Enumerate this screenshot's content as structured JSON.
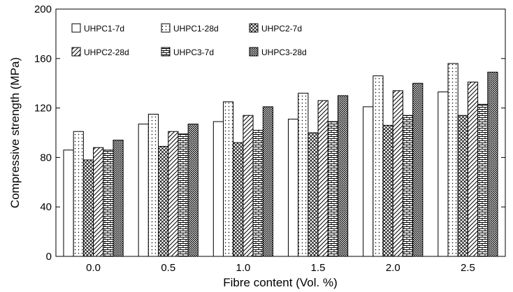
{
  "chart_data": {
    "type": "bar",
    "xlabel": "Fibre content (Vol. %)",
    "ylabel": "Compressive strength (MPa)",
    "categories": [
      "0.0",
      "0.5",
      "1.0",
      "1.5",
      "2.0",
      "2.5"
    ],
    "ylim": [
      0,
      200
    ],
    "yticks": [
      "0",
      "40",
      "80",
      "120",
      "160",
      "200"
    ],
    "legend_position": "top-left, inside plot, 2 rows x 3 columns",
    "series": [
      {
        "name": "UHPC1-7d",
        "pattern": "blank",
        "values": [
          86,
          107,
          109,
          111,
          121,
          133
        ]
      },
      {
        "name": "UHPC1-28d",
        "pattern": "dots",
        "values": [
          101,
          115,
          125,
          132,
          146,
          156
        ]
      },
      {
        "name": "UHPC2-7d",
        "pattern": "crosshatch",
        "values": [
          78,
          89,
          92,
          100,
          106,
          114
        ]
      },
      {
        "name": "UHPC2-28d",
        "pattern": "diagonal-lines",
        "values": [
          88,
          101,
          114,
          126,
          134,
          141
        ]
      },
      {
        "name": "UHPC3-7d",
        "pattern": "brick",
        "values": [
          86,
          99,
          102,
          109,
          114,
          123
        ]
      },
      {
        "name": "UHPC3-28d",
        "pattern": "dense-dots",
        "values": [
          94,
          107,
          121,
          130,
          140,
          149
        ]
      }
    ]
  }
}
